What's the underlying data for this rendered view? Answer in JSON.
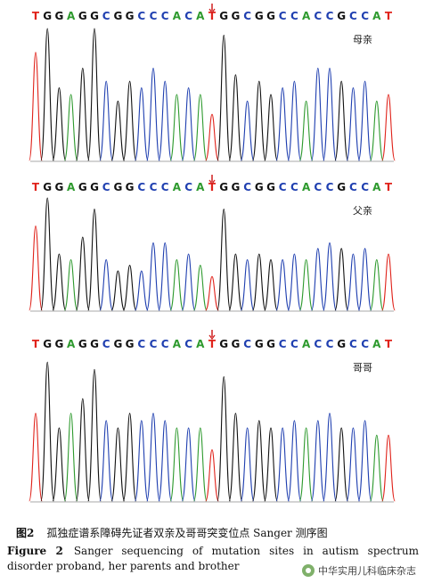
{
  "chart_data": [
    {
      "type": "line",
      "panel_label": "母亲",
      "sequence": "TGGAGGCGGCCCACATGGCGGCCACCGCCAT",
      "mutation_marker_index": 15,
      "base_colors": {
        "A": "#2e9a2e",
        "C": "#1f3fb0",
        "G": "#111111",
        "T": "#e0231b"
      },
      "marker_color": "#d11f1f"
    },
    {
      "type": "line",
      "panel_label": "父亲",
      "sequence": "TGGAGGCGGCCCACATGGCGGCCACCGCCAT",
      "mutation_marker_index": 15,
      "base_colors": {
        "A": "#2e9a2e",
        "C": "#1f3fb0",
        "G": "#111111",
        "T": "#e0231b"
      },
      "marker_color": "#d11f1f"
    },
    {
      "type": "line",
      "panel_label": "哥哥",
      "sequence": "TGGAGGCGGCCCACATGGCGGCCACCGCCAT",
      "mutation_marker_index": 15,
      "base_colors": {
        "A": "#2e9a2e",
        "C": "#1f3fb0",
        "G": "#111111",
        "T": "#e0231b"
      },
      "marker_color": "#d11f1f"
    }
  ],
  "caption": {
    "cn_label": "图2",
    "cn_text": "孤独症谱系障碍先证者双亲及哥哥突变位点 Sanger 测序图",
    "en_label": "Figure 2",
    "en_text": "Sanger sequencing of mutation sites in autism spectrum disorder proband, her parents and brother"
  },
  "watermark": {
    "text": "中华实用儿科临床杂志"
  }
}
